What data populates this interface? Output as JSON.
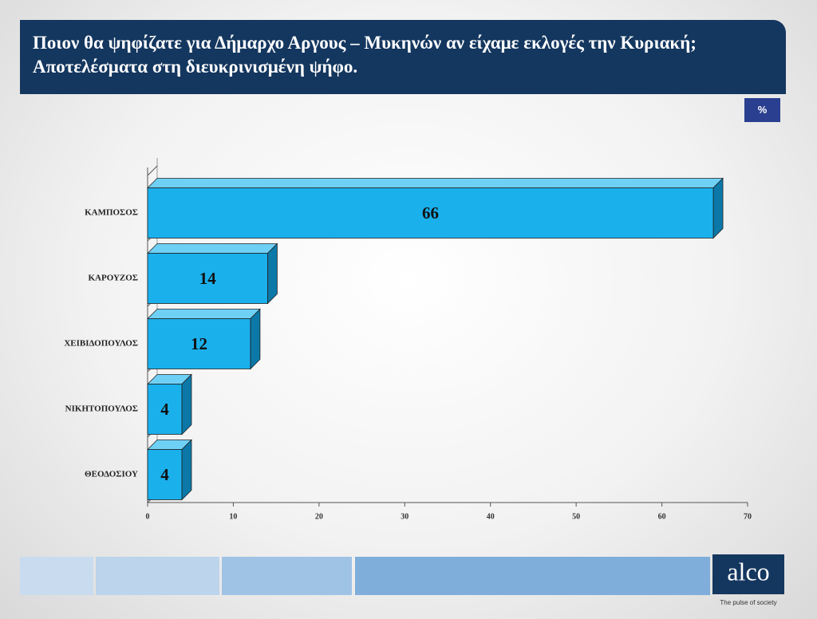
{
  "chart_data": {
    "type": "bar3d",
    "title": "Ποιον  θα ψηφίζατε για Δήμαρχο Αργους  – Μυκηνών   αν είχαμε εκλογές την Κυριακή;  Αποτελέσματα  στη διευκρινισμένη ψήφο.",
    "unit_badge": "%",
    "categories": [
      "ΚΑΜΠΟΣΟΣ",
      "ΚΑΡΟΥΖΟΣ",
      "ΧΕΙΒΙΔΟΠΟΥΛΟΣ",
      "ΝΙΚΗΤΟΠΟΥΛΟΣ",
      "ΘΕΟΔΟΣΙΟΥ"
    ],
    "values": [
      66,
      14,
      12,
      4,
      4
    ],
    "color": "#1ab0ec",
    "xlim": [
      0,
      70
    ],
    "xticks": [
      0,
      10,
      20,
      30,
      40,
      50,
      60,
      70
    ]
  },
  "logo": {
    "name": "alco",
    "tagline": "The pulse of society"
  }
}
